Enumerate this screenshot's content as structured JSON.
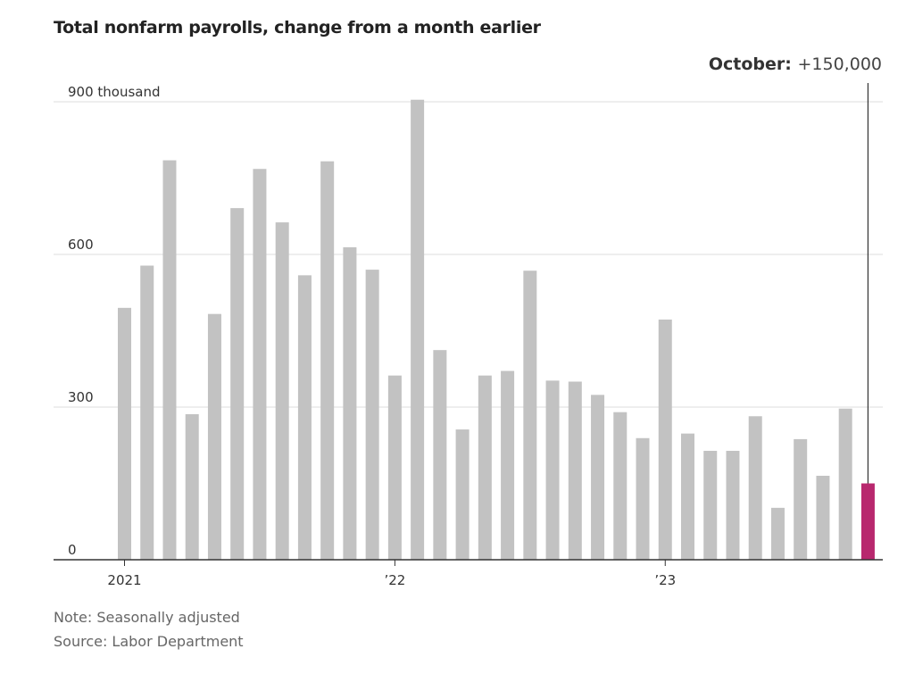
{
  "title": "Total nonfarm payrolls, change from a month earlier",
  "note": "Note: Seasonally adjusted",
  "source": "Source: Labor Department",
  "annotation": {
    "label": "October:",
    "value": "+150,000"
  },
  "colors": {
    "bar": "#c2c2c2",
    "highlight": "#b8286e",
    "grid": "#dddddd",
    "axis": "#333333",
    "annotation_line": "#333333"
  },
  "chart_data": {
    "type": "bar",
    "categories": [
      "2021-01",
      "2021-02",
      "2021-03",
      "2021-04",
      "2021-05",
      "2021-06",
      "2021-07",
      "2021-08",
      "2021-09",
      "2021-10",
      "2021-11",
      "2021-12",
      "2022-01",
      "2022-02",
      "2022-03",
      "2022-04",
      "2022-05",
      "2022-06",
      "2022-07",
      "2022-08",
      "2022-09",
      "2022-10",
      "2022-11",
      "2022-12",
      "2023-01",
      "2023-02",
      "2023-03",
      "2023-04",
      "2023-05",
      "2023-06",
      "2023-07",
      "2023-08",
      "2023-09",
      "2023-10"
    ],
    "values": [
      495,
      578,
      785,
      286,
      483,
      691,
      768,
      663,
      559,
      783,
      614,
      570,
      362,
      904,
      412,
      256,
      362,
      371,
      568,
      352,
      350,
      324,
      290,
      239,
      472,
      248,
      214,
      214,
      282,
      102,
      237,
      165,
      297,
      150
    ],
    "highlight_index": 33,
    "ylim": [
      0,
      900
    ],
    "yticks": [
      0,
      300,
      600,
      900
    ],
    "ytick_labels": [
      "0",
      "300",
      "600",
      "900 thousand"
    ],
    "xticks": [
      {
        "index": 0,
        "label": "2021"
      },
      {
        "index": 12,
        "label": "’22"
      },
      {
        "index": 24,
        "label": "’23"
      }
    ],
    "grid": true,
    "legend": false
  }
}
